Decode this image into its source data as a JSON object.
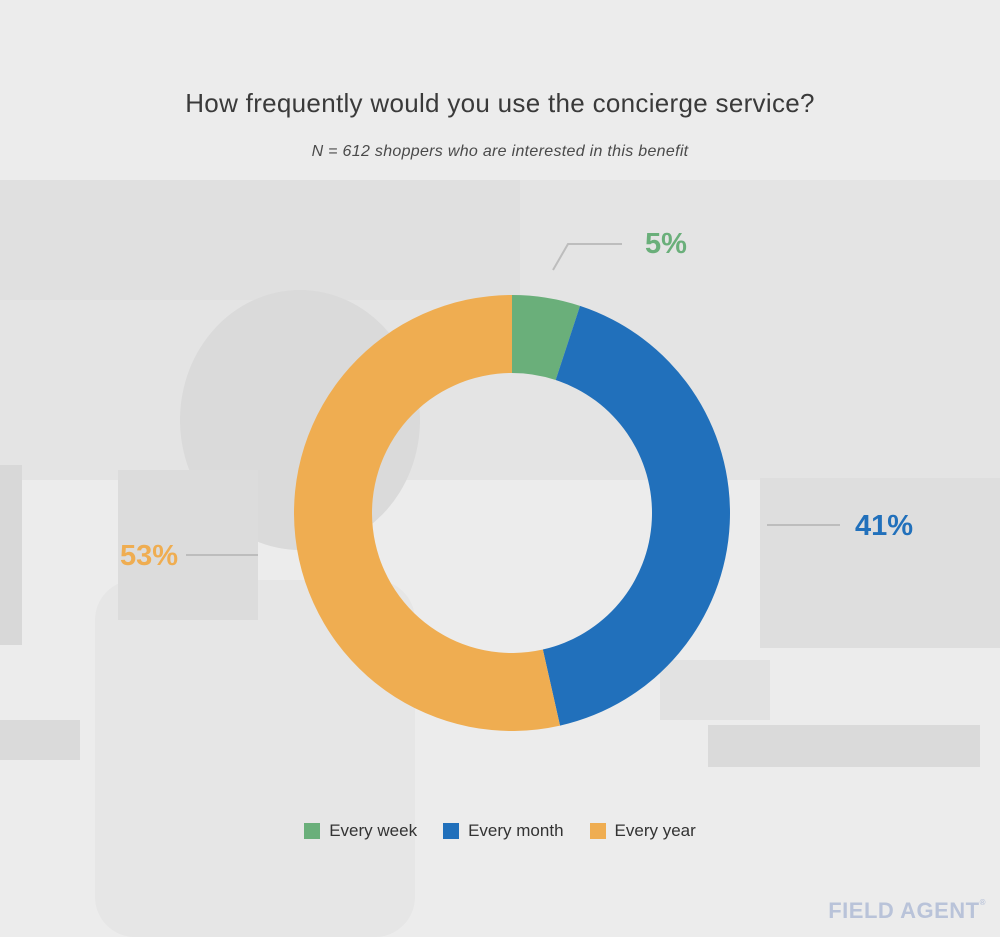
{
  "title": "How frequently would you use the concierge service?",
  "subtitle": "N = 612 shoppers who are interested in this benefit",
  "brand": "FIELD AGENT",
  "brand_mark": "®",
  "chart_data": {
    "type": "pie",
    "style": "donut",
    "title": "How frequently would you use the concierge service?",
    "subtitle": "N = 612 shoppers who are interested in this benefit",
    "categories": [
      "Every week",
      "Every month",
      "Every year"
    ],
    "values": [
      5,
      41,
      53
    ],
    "labels": [
      "5%",
      "41%",
      "53%"
    ],
    "colors": [
      "#6aaf7a",
      "#2170bb",
      "#efad51"
    ],
    "legend_position": "bottom"
  }
}
